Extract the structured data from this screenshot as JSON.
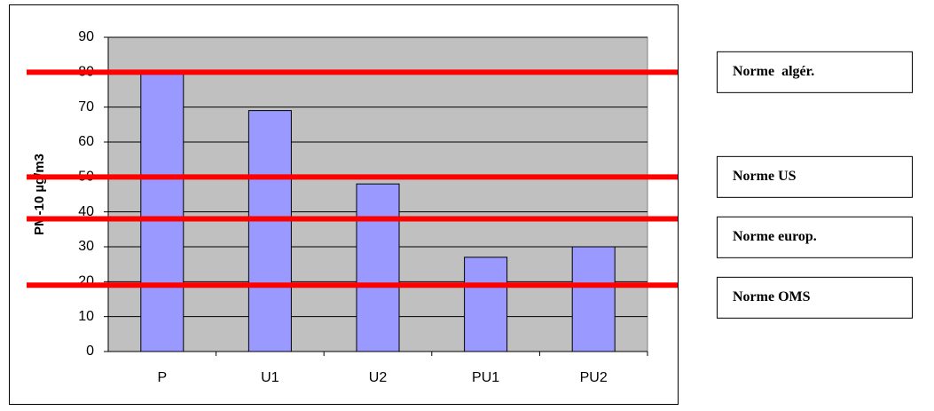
{
  "chart_data": {
    "type": "bar",
    "y_label": "PM-10 µg/m3",
    "categories": [
      "P",
      "U1",
      "U2",
      "PU1",
      "PU2"
    ],
    "values": [
      80,
      69,
      48,
      27,
      30
    ],
    "color": "#9999ff",
    "ylim": [
      0,
      90
    ],
    "yticks": [
      0,
      10,
      20,
      30,
      40,
      50,
      60,
      70,
      80,
      90
    ],
    "grid": true,
    "reference_lines": [
      {
        "label": "Norme  algér.",
        "value": 80,
        "color": "#ff0000"
      },
      {
        "label": "Norme US",
        "value": 50,
        "color": "#ff0000"
      },
      {
        "label": "Norme europ.",
        "value": 38,
        "color": "#ff0000"
      },
      {
        "label": "Norme OMS",
        "value": 19,
        "color": "#ff0000"
      }
    ]
  }
}
